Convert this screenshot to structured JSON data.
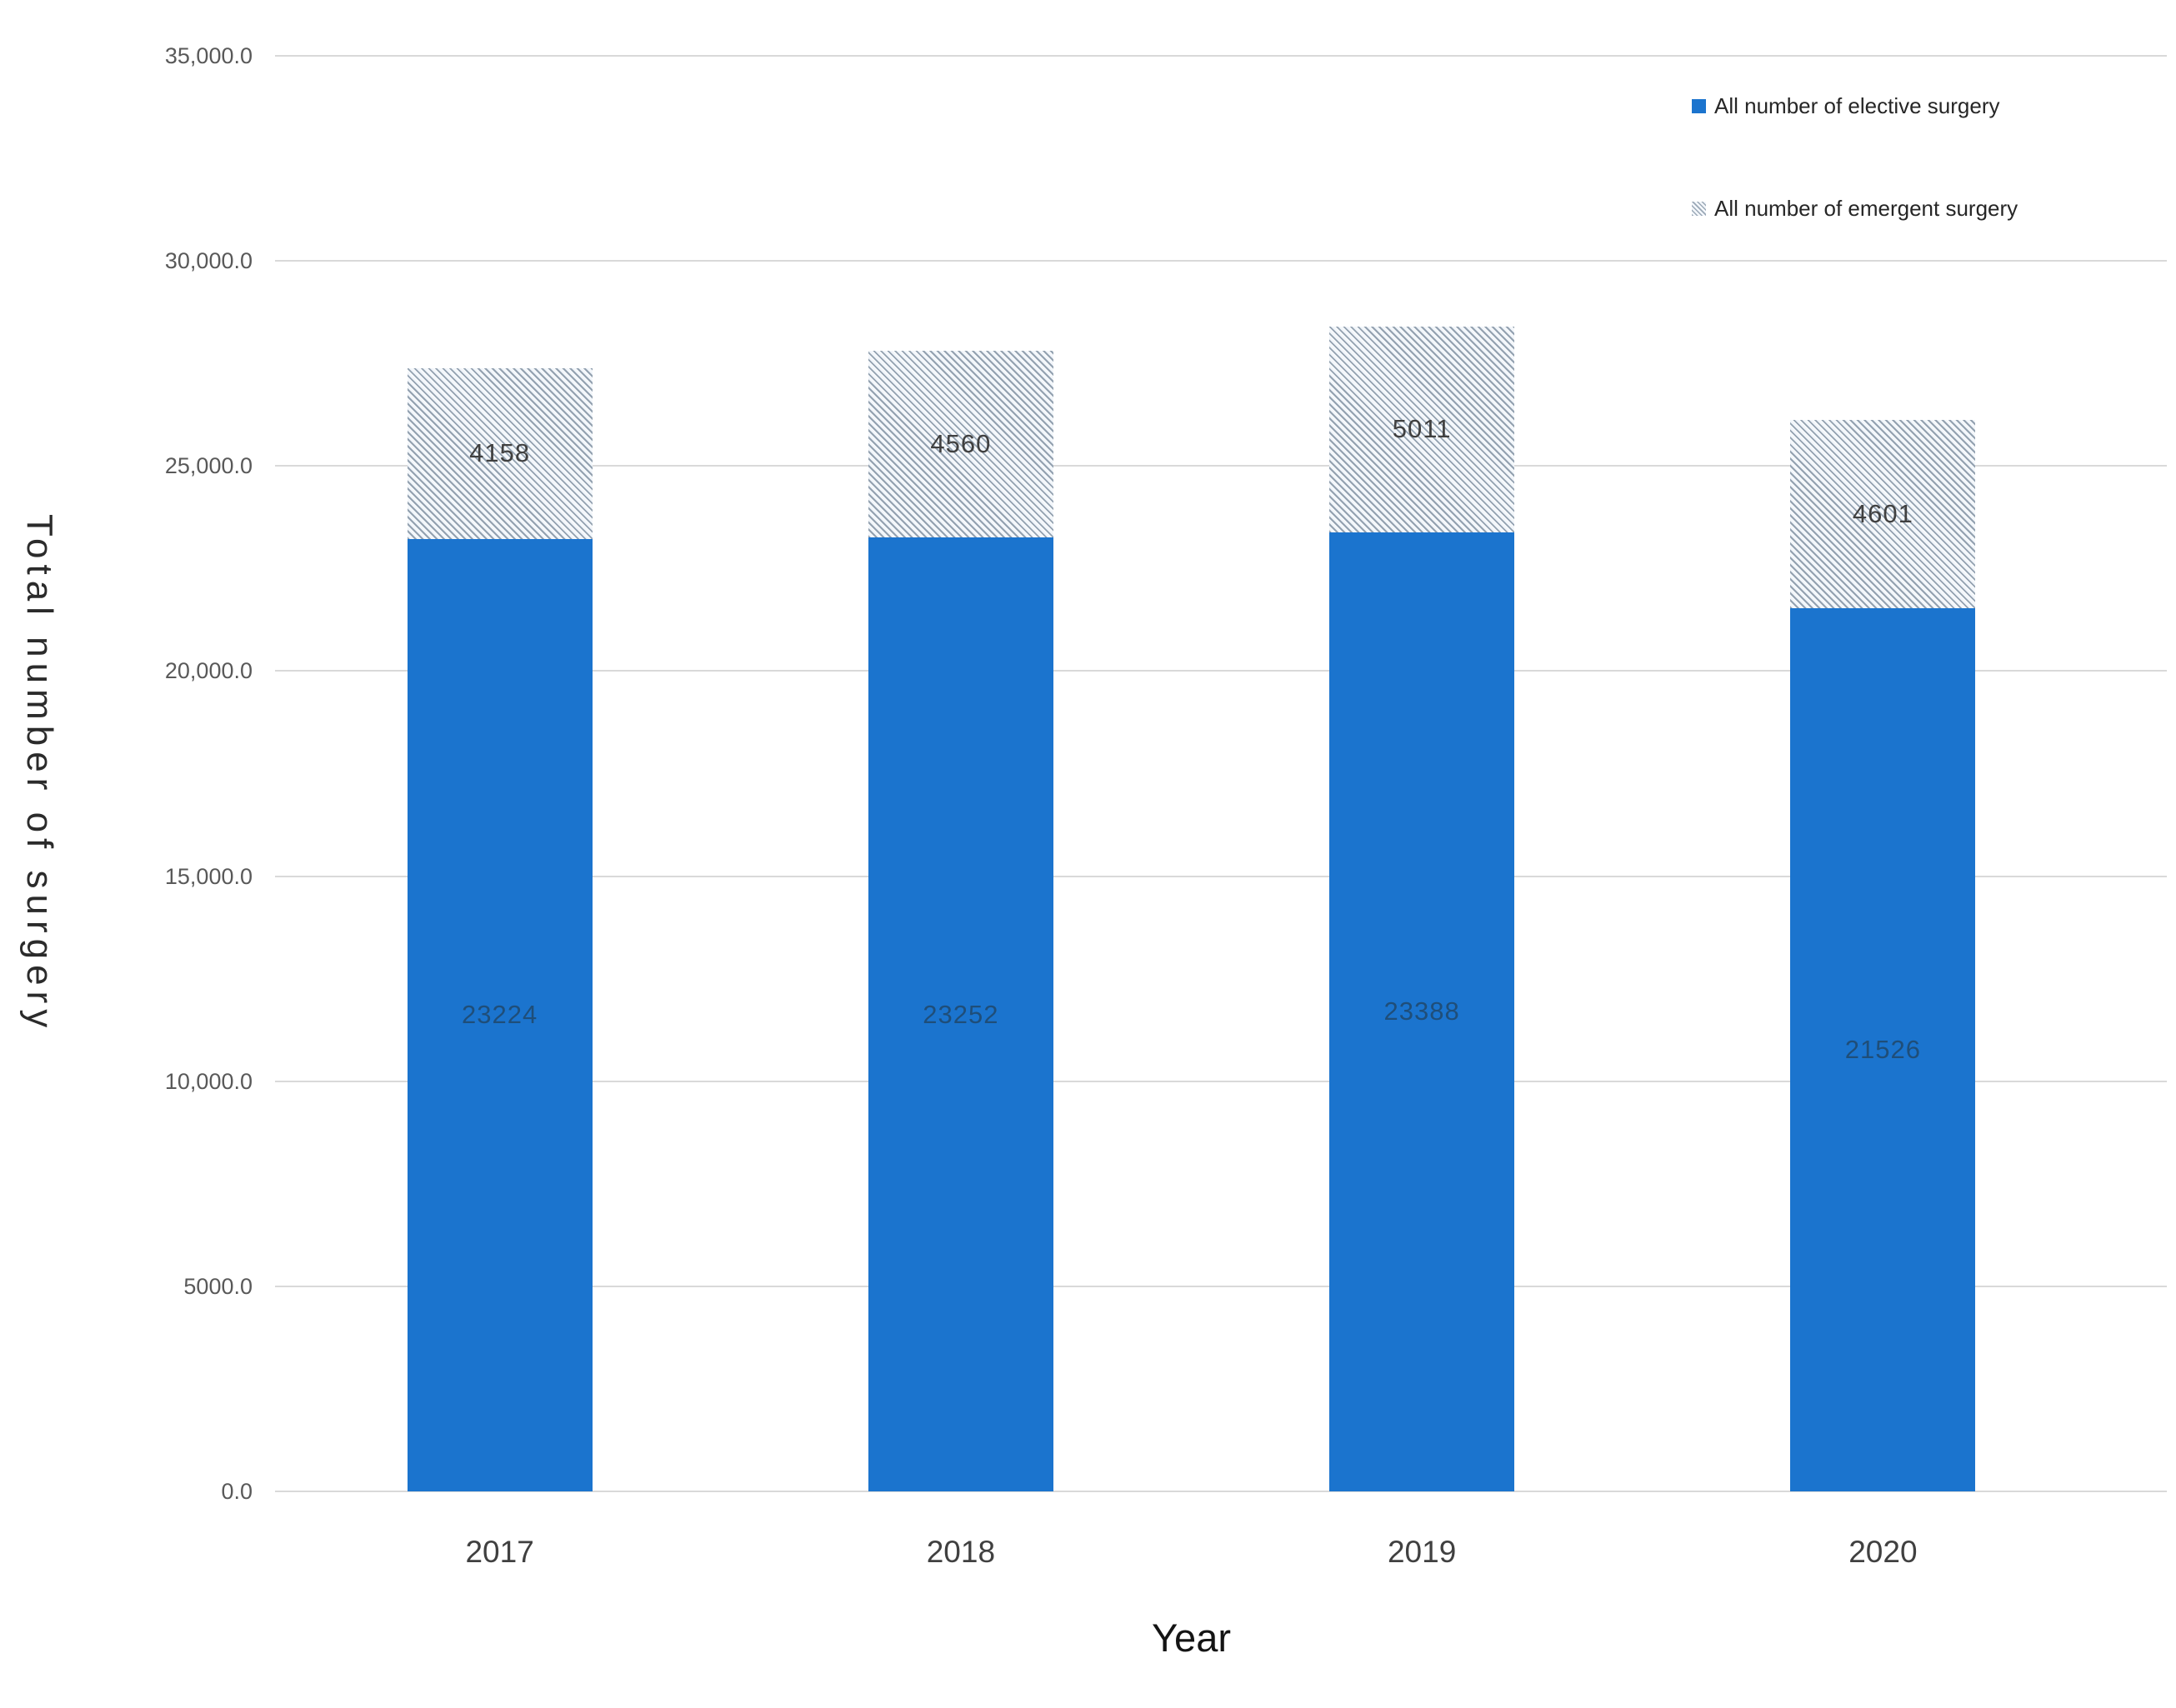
{
  "chart_data": {
    "type": "bar",
    "stacked": true,
    "title": "",
    "categories": [
      "2017",
      "2018",
      "2019",
      "2020"
    ],
    "series": [
      {
        "name": "All number of elective surgery",
        "values": [
          23224,
          23252,
          23388,
          21526
        ],
        "style": "solid",
        "color": "#1b74ce",
        "value_label_color": "#1f4e79"
      },
      {
        "name": "All number of emergent surgery",
        "values": [
          4158,
          4560,
          5011,
          4601
        ],
        "style": "hatched-diagonal",
        "value_label_color": "#404040"
      }
    ],
    "xlabel": "Year",
    "ylabel": "Total number of surgery",
    "ylim": [
      0,
      35000
    ],
    "ytick_labels": [
      "0.0",
      "5000.0",
      "10,000.0",
      "15,000.0",
      "20,000.0",
      "25,000.0",
      "30,000.0",
      "35,000.0"
    ],
    "grid": "horizontal",
    "legend_position": "top-right"
  },
  "colors": {
    "elective_blue": "#1b74ce",
    "hatch_stripe": "#93a1b0",
    "hatch_background": "#f2f7fb",
    "gridline": "#d9d9d9",
    "y_tick_label": "#595959",
    "x_tick_label": "#404040"
  }
}
